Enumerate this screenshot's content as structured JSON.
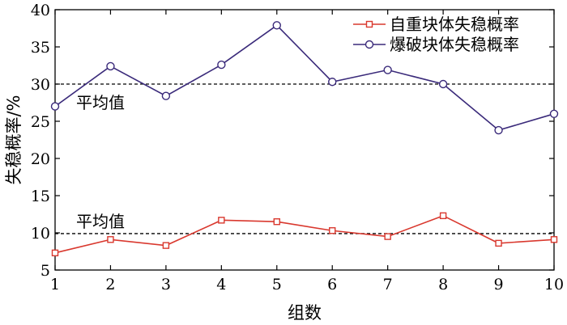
{
  "chart_data": {
    "type": "line",
    "xlabel": "组数",
    "ylabel": "失稳概率/%",
    "x": [
      1,
      2,
      3,
      4,
      5,
      6,
      7,
      8,
      9,
      10
    ],
    "xlim": [
      1,
      10
    ],
    "ylim": [
      5,
      40
    ],
    "xticks": [
      1,
      2,
      3,
      4,
      5,
      6,
      7,
      8,
      9,
      10
    ],
    "yticks": [
      5,
      10,
      15,
      20,
      25,
      30,
      35,
      40
    ],
    "grid": false,
    "legend_position": "top-right",
    "series": [
      {
        "name": "自重块体失稳概率",
        "color": "#d9382e",
        "marker": "square",
        "values": [
          7.3,
          9.1,
          8.3,
          11.7,
          11.5,
          10.3,
          9.5,
          12.3,
          8.6,
          9.1
        ]
      },
      {
        "name": "爆破块体失稳概率",
        "color": "#3a2a7a",
        "marker": "circle",
        "values": [
          27.0,
          32.4,
          28.4,
          32.6,
          37.9,
          30.3,
          31.9,
          30.0,
          23.8,
          26.0
        ]
      }
    ],
    "reference_lines": [
      {
        "y": 30.0,
        "label": "平均值"
      },
      {
        "y": 9.9,
        "label": "平均值"
      }
    ]
  }
}
